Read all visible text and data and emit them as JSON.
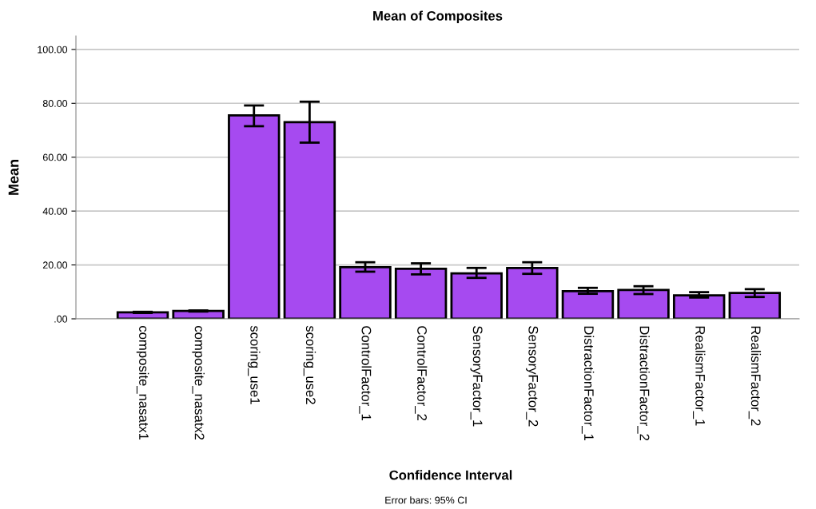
{
  "chart_data": {
    "type": "bar",
    "title": "Mean of Composites",
    "xlabel": "Confidence Interval",
    "ylabel": "Mean",
    "categories": [
      "composite_nasatx1",
      "composite_nasatx2",
      "scoring_use1",
      "scoring_use2",
      "ControlFactor_1",
      "ControlFactor_2",
      "SensoryFactor_1",
      "SensoryFactor_2",
      "DistractionFactor_1",
      "DistractionFactor_2",
      "RealismFactor_1",
      "RealismFactor_2"
    ],
    "values": [
      2.4,
      2.9,
      75.5,
      73.0,
      19.2,
      18.6,
      16.9,
      18.9,
      10.3,
      10.7,
      8.7,
      9.6
    ],
    "errors": [
      [
        2.2,
        2.6
      ],
      [
        2.7,
        3.1
      ],
      [
        71.5,
        79.2
      ],
      [
        65.4,
        80.6
      ],
      [
        17.5,
        21.0
      ],
      [
        16.5,
        20.6
      ],
      [
        15.2,
        18.9
      ],
      [
        16.7,
        21.0
      ],
      [
        9.3,
        11.5
      ],
      [
        9.2,
        12.1
      ],
      [
        7.9,
        9.9
      ],
      [
        8.1,
        11.0
      ]
    ],
    "color": "#a64af0",
    "ylim": [
      0,
      105
    ],
    "yticks": [
      {
        "value": 0,
        "label": ".00"
      },
      {
        "value": 20,
        "label": "20.00"
      },
      {
        "value": 40,
        "label": "40.00"
      },
      {
        "value": 60,
        "label": "60.00"
      },
      {
        "value": 80,
        "label": "80.00"
      },
      {
        "value": 100,
        "label": "100.00"
      }
    ],
    "grid": "y",
    "annotations": [
      "Error bars: 95% CI"
    ]
  }
}
